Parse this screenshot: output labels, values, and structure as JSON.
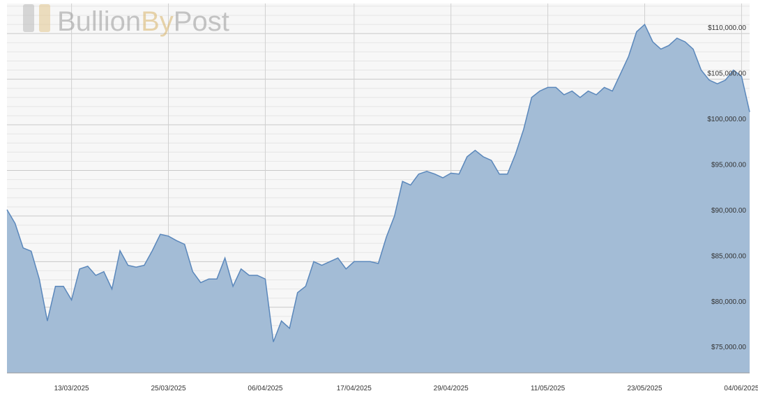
{
  "chart_data": {
    "type": "area",
    "logo": [
      "Bullion",
      "By",
      "Post"
    ],
    "x": [
      "05/03/2025",
      "06/03/2025",
      "07/03/2025",
      "08/03/2025",
      "09/03/2025",
      "10/03/2025",
      "11/03/2025",
      "12/03/2025",
      "13/03/2025",
      "14/03/2025",
      "15/03/2025",
      "16/03/2025",
      "17/03/2025",
      "18/03/2025",
      "19/03/2025",
      "20/03/2025",
      "21/03/2025",
      "22/03/2025",
      "23/03/2025",
      "24/03/2025",
      "25/03/2025",
      "26/03/2025",
      "27/03/2025",
      "28/03/2025",
      "29/03/2025",
      "30/03/2025",
      "31/03/2025",
      "01/04/2025",
      "02/04/2025",
      "03/04/2025",
      "04/04/2025",
      "05/04/2025",
      "06/04/2025",
      "07/04/2025",
      "08/04/2025",
      "09/04/2025",
      "10/04/2025",
      "11/04/2025",
      "12/04/2025",
      "13/04/2025",
      "14/04/2025",
      "15/04/2025",
      "16/04/2025",
      "17/04/2025",
      "18/04/2025",
      "19/04/2025",
      "20/04/2025",
      "21/04/2025",
      "22/04/2025",
      "23/04/2025",
      "24/04/2025",
      "25/04/2025",
      "26/04/2025",
      "27/04/2025",
      "28/04/2025",
      "29/04/2025",
      "30/04/2025",
      "01/05/2025",
      "02/05/2025",
      "03/05/2025",
      "04/05/2025",
      "05/05/2025",
      "06/05/2025",
      "07/05/2025",
      "08/05/2025",
      "09/05/2025",
      "10/05/2025",
      "11/05/2025",
      "12/05/2025",
      "13/05/2025",
      "14/05/2025",
      "15/05/2025",
      "16/05/2025",
      "17/05/2025",
      "18/05/2025",
      "19/05/2025",
      "20/05/2025",
      "21/05/2025",
      "22/05/2025",
      "23/05/2025",
      "24/05/2025",
      "25/05/2025",
      "26/05/2025",
      "27/05/2025",
      "28/05/2025",
      "29/05/2025",
      "30/05/2025",
      "31/05/2025",
      "01/06/2025",
      "02/06/2025",
      "03/06/2025",
      "04/06/2025",
      "05/06/2025"
    ],
    "values": [
      90700,
      89200,
      86500,
      86150,
      83100,
      78500,
      82300,
      82300,
      80800,
      84200,
      84500,
      83500,
      83900,
      82000,
      86200,
      84600,
      84400,
      84600,
      86200,
      88000,
      87800,
      87300,
      86900,
      83900,
      82700,
      83100,
      83100,
      85400,
      82300,
      84200,
      83500,
      83500,
      83100,
      76200,
      78500,
      77700,
      81600,
      82300,
      85000,
      84600,
      85000,
      85400,
      84200,
      85000,
      85000,
      85000,
      84800,
      87700,
      90000,
      93800,
      93400,
      94600,
      94900,
      94600,
      94200,
      94700,
      94600,
      96500,
      97200,
      96500,
      96100,
      94600,
      94600,
      96800,
      99500,
      103000,
      103700,
      104100,
      104100,
      103300,
      103700,
      103000,
      103700,
      103300,
      104100,
      103700,
      105600,
      107500,
      110200,
      111000,
      109100,
      108300,
      108700,
      109500,
      109100,
      108300,
      106000,
      104900,
      104500,
      104900,
      106000,
      105300,
      101400
    ],
    "color": "#5a87bb",
    "fill": "#a3bcd6",
    "xlim": [
      "05/03/2025",
      "05/06/2025"
    ],
    "xticks": [
      "13/03/2025",
      "25/03/2025",
      "06/04/2025",
      "17/04/2025",
      "29/04/2025",
      "11/05/2025",
      "23/05/2025",
      "04/06/2025"
    ],
    "ylim": [
      72800,
      113300
    ],
    "yticks": [
      {
        "value": 75000,
        "label": "$75,000.00"
      },
      {
        "value": 80000,
        "label": "$80,000.00"
      },
      {
        "value": 85000,
        "label": "$85,000.00"
      },
      {
        "value": 90000,
        "label": "$90,000.00"
      },
      {
        "value": 95000,
        "label": "$95,000.00"
      },
      {
        "value": 100000,
        "label": "$100,000.00"
      },
      {
        "value": 105000,
        "label": "$105,000.00"
      },
      {
        "value": 110000,
        "label": "$110,000.00"
      }
    ],
    "minor_yticks": [
      73000,
      74000,
      76000,
      77000,
      78000,
      79000,
      81000,
      82000,
      83000,
      84000,
      86000,
      87000,
      88000,
      89000,
      91000,
      92000,
      93000,
      94000,
      96000,
      97000,
      98000,
      99000,
      101000,
      102000,
      103000,
      104000,
      106000,
      107000,
      108000,
      109000,
      111000,
      112000,
      113000
    ],
    "grid": true
  }
}
